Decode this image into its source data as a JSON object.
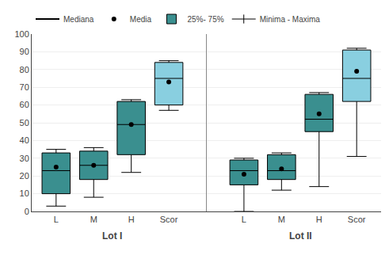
{
  "chart_data": {
    "type": "box",
    "groups": [
      {
        "name": "Lot I",
        "boxes": [
          {
            "category": "L",
            "min": 3,
            "q1": 10,
            "median": 23,
            "q3": 33,
            "max": 35,
            "mean": 25,
            "color": "#3a8f8f"
          },
          {
            "category": "M",
            "min": 8,
            "q1": 18,
            "median": 26,
            "q3": 34,
            "max": 36,
            "mean": 26,
            "color": "#3a8f8f"
          },
          {
            "category": "H",
            "min": 22,
            "q1": 32,
            "median": 49,
            "q3": 62,
            "max": 63,
            "mean": 49,
            "color": "#3a8f8f"
          },
          {
            "category": "Scor",
            "min": 57,
            "q1": 60,
            "median": 75,
            "q3": 84,
            "max": 85,
            "mean": 73,
            "color": "#89cfe0"
          }
        ]
      },
      {
        "name": "Lot II",
        "boxes": [
          {
            "category": "L",
            "min": 0,
            "q1": 15,
            "median": 23,
            "q3": 29,
            "max": 30,
            "mean": 21,
            "color": "#3a8f8f"
          },
          {
            "category": "M",
            "min": 12,
            "q1": 18,
            "median": 23,
            "q3": 32,
            "max": 33,
            "mean": 24,
            "color": "#3a8f8f"
          },
          {
            "category": "H",
            "min": 14,
            "q1": 45,
            "median": 52,
            "q3": 66,
            "max": 67,
            "mean": 55,
            "color": "#3a8f8f"
          },
          {
            "category": "Scor",
            "min": 31,
            "q1": 62,
            "median": 75,
            "q3": 91,
            "max": 92,
            "mean": 79,
            "color": "#89cfe0"
          }
        ]
      }
    ],
    "ylim": [
      0,
      100
    ],
    "yticks": [
      0,
      10,
      20,
      30,
      40,
      50,
      60,
      70,
      80,
      90,
      100
    ],
    "grid": true,
    "legend": "upper left",
    "legend_items": [
      {
        "name": "Mediana",
        "color": "#000000",
        "marker": "line"
      },
      {
        "name": "Media",
        "color": "#000000",
        "marker": "circle"
      },
      {
        "name": "25%- 75%",
        "color": "#3a8f8f",
        "marker": "box"
      },
      {
        "name": "Minima - Maxima",
        "color": "#000000",
        "marker": "whisker"
      }
    ]
  }
}
